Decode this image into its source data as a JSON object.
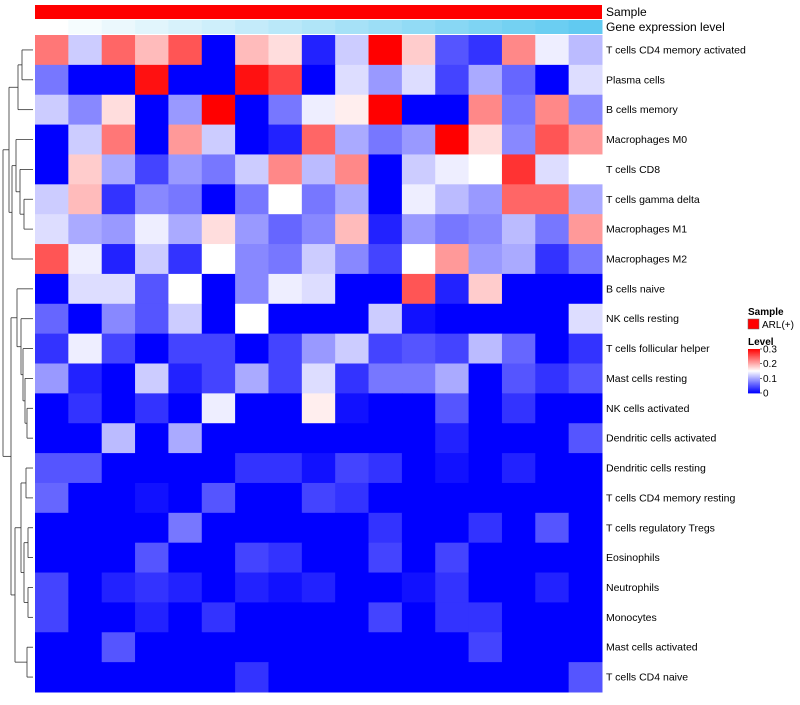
{
  "chart_data": {
    "type": "heatmap",
    "title": "",
    "annotations": [
      {
        "name": "Sample",
        "color": "#ff0000"
      },
      {
        "name": "Gene expression level",
        "color_low": "#ffffff",
        "color_high": "#5ac8f0"
      }
    ],
    "n_columns": 17,
    "rows": [
      "T cells CD4 memory activated",
      "Plasma cells",
      "B cells memory",
      "Macrophages M0",
      "T cells CD8",
      "T cells gamma delta",
      "Macrophages M1",
      "Macrophages M2",
      "B cells naive",
      "NK cells resting",
      "T cells follicular helper",
      "Mast cells resting",
      "NK cells activated",
      "Dendritic cells activated",
      "Dendritic cells resting",
      "T cells CD4 memory resting",
      "T cells regulatory  Tregs",
      "Eosinophils",
      "Neutrophils",
      "Monocytes",
      "Mast cells activated",
      "T cells CD4 naive"
    ],
    "values": [
      [
        0.23,
        0.12,
        0.24,
        0.19,
        0.25,
        0.0,
        0.19,
        0.17,
        0.02,
        0.12,
        0.3,
        0.18,
        0.05,
        0.03,
        0.22,
        0.14,
        0.11
      ],
      [
        0.07,
        0.0,
        0.0,
        0.29,
        0.0,
        0.0,
        0.29,
        0.26,
        0.0,
        0.13,
        0.09,
        0.13,
        0.04,
        0.1,
        0.06,
        0.0,
        0.13
      ],
      [
        0.12,
        0.08,
        0.17,
        0.0,
        0.09,
        0.3,
        0.0,
        0.07,
        0.14,
        0.16,
        0.3,
        0.0,
        0.0,
        0.22,
        0.07,
        0.22,
        0.08
      ],
      [
        0.0,
        0.12,
        0.23,
        0.0,
        0.21,
        0.12,
        0.0,
        0.02,
        0.24,
        0.1,
        0.07,
        0.09,
        0.3,
        0.17,
        0.08,
        0.25,
        0.21
      ],
      [
        0.0,
        0.18,
        0.1,
        0.04,
        0.09,
        0.07,
        0.12,
        0.22,
        0.11,
        0.22,
        0.0,
        0.12,
        0.14,
        0.15,
        0.27,
        0.13,
        0.15
      ],
      [
        0.12,
        0.19,
        0.03,
        0.08,
        0.07,
        0.0,
        0.07,
        0.15,
        0.07,
        0.1,
        0.0,
        0.14,
        0.11,
        0.09,
        0.24,
        0.24,
        0.1
      ],
      [
        0.13,
        0.1,
        0.09,
        0.14,
        0.1,
        0.17,
        0.09,
        0.06,
        0.08,
        0.19,
        0.02,
        0.09,
        0.07,
        0.08,
        0.11,
        0.07,
        0.21
      ],
      [
        0.25,
        0.14,
        0.02,
        0.12,
        0.03,
        0.15,
        0.08,
        0.07,
        0.12,
        0.08,
        0.04,
        0.15,
        0.21,
        0.09,
        0.1,
        0.03,
        0.07
      ],
      [
        0.0,
        0.13,
        0.13,
        0.05,
        0.15,
        0.0,
        0.08,
        0.14,
        0.13,
        0.0,
        0.0,
        0.25,
        0.02,
        0.18,
        0.0,
        0.0,
        0.0
      ],
      [
        0.06,
        0.0,
        0.08,
        0.05,
        0.12,
        0.0,
        0.15,
        0.0,
        0.0,
        0.0,
        0.12,
        0.01,
        0.0,
        0.0,
        0.0,
        0.0,
        0.13
      ],
      [
        0.03,
        0.14,
        0.04,
        0.0,
        0.04,
        0.04,
        0.0,
        0.04,
        0.09,
        0.12,
        0.04,
        0.05,
        0.04,
        0.11,
        0.06,
        0.0,
        0.03
      ],
      [
        0.09,
        0.02,
        0.0,
        0.12,
        0.02,
        0.04,
        0.1,
        0.04,
        0.13,
        0.03,
        0.07,
        0.07,
        0.1,
        0.0,
        0.05,
        0.03,
        0.05
      ],
      [
        0.0,
        0.03,
        0.0,
        0.03,
        0.0,
        0.14,
        0.0,
        0.0,
        0.16,
        0.01,
        0.0,
        0.0,
        0.05,
        0.0,
        0.03,
        0.0,
        0.0
      ],
      [
        0.0,
        0.0,
        0.11,
        0.0,
        0.1,
        0.0,
        0.0,
        0.0,
        0.0,
        0.0,
        0.0,
        0.0,
        0.02,
        0.0,
        0.0,
        0.0,
        0.05
      ],
      [
        0.05,
        0.05,
        0.0,
        0.0,
        0.0,
        0.0,
        0.03,
        0.03,
        0.01,
        0.04,
        0.03,
        0.0,
        0.01,
        0.0,
        0.02,
        0.0,
        0.0
      ],
      [
        0.06,
        0.0,
        0.0,
        0.01,
        0.0,
        0.05,
        0.0,
        0.0,
        0.04,
        0.03,
        0.0,
        0.0,
        0.0,
        0.0,
        0.0,
        0.0,
        0.0
      ],
      [
        0.0,
        0.0,
        0.0,
        0.0,
        0.07,
        0.0,
        0.0,
        0.0,
        0.0,
        0.0,
        0.03,
        0.0,
        0.0,
        0.03,
        0.0,
        0.05,
        0.0
      ],
      [
        0.0,
        0.0,
        0.0,
        0.05,
        0.0,
        0.0,
        0.04,
        0.03,
        0.0,
        0.0,
        0.04,
        0.0,
        0.04,
        0.0,
        0.0,
        0.0,
        0.0
      ],
      [
        0.04,
        0.0,
        0.02,
        0.03,
        0.02,
        0.0,
        0.02,
        0.01,
        0.02,
        0.0,
        0.0,
        0.01,
        0.03,
        0.0,
        0.0,
        0.02,
        0.0
      ],
      [
        0.04,
        0.0,
        0.0,
        0.02,
        0.0,
        0.03,
        0.0,
        0.0,
        0.0,
        0.0,
        0.04,
        0.0,
        0.03,
        0.03,
        0.0,
        0.0,
        0.0
      ],
      [
        0.0,
        0.0,
        0.05,
        0.0,
        0.0,
        0.0,
        0.0,
        0.0,
        0.0,
        0.0,
        0.0,
        0.0,
        0.0,
        0.04,
        0.0,
        0.0,
        0.0
      ],
      [
        0.0,
        0.0,
        0.0,
        0.0,
        0.0,
        0.0,
        0.03,
        0.0,
        0.0,
        0.0,
        0.0,
        0.0,
        0.0,
        0.0,
        0.0,
        0.0,
        0.05
      ]
    ],
    "gene_expression_level": [
      0.0,
      0.06,
      0.12,
      0.18,
      0.24,
      0.3,
      0.36,
      0.42,
      0.48,
      0.54,
      0.6,
      0.66,
      0.72,
      0.78,
      0.84,
      0.9,
      0.96
    ],
    "color_scale": {
      "min": 0,
      "max": 0.3,
      "low": "#0000ff",
      "mid": "#ffffff",
      "high": "#ff0000"
    },
    "legend": {
      "sample_title": "Sample",
      "sample_entry": "ARL(+)",
      "sample_color": "#ff0000",
      "level_title": "Level",
      "ticks": [
        "0.3",
        "0.2",
        "0.1",
        "0"
      ],
      "tick_values": [
        0.3,
        0.2,
        0.1,
        0
      ]
    }
  }
}
